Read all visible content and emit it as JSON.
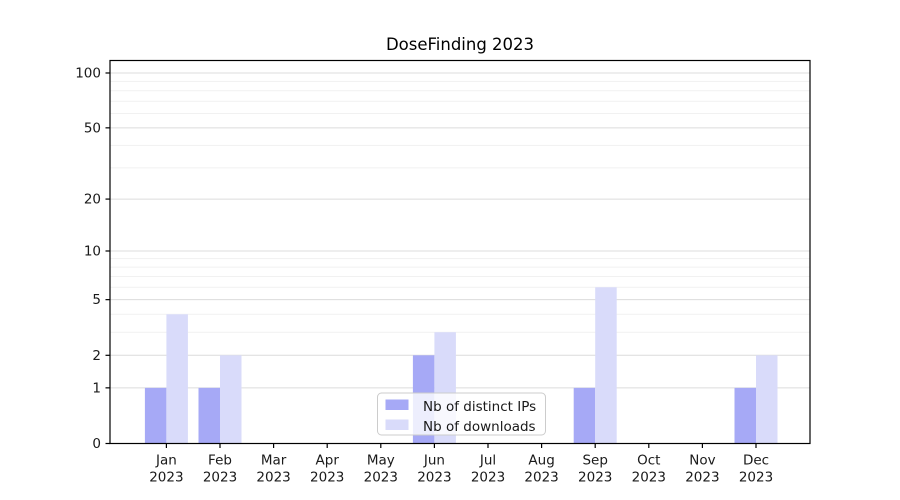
{
  "page": {
    "background": "#ffffff"
  },
  "chart_data": {
    "type": "bar",
    "title": "DoseFinding 2023",
    "categories": [
      "Jan",
      "Feb",
      "Mar",
      "Apr",
      "May",
      "Jun",
      "Jul",
      "Aug",
      "Sep",
      "Oct",
      "Nov",
      "Dec"
    ],
    "category_year": "2023",
    "series": [
      {
        "name": "Nb of distinct IPs",
        "color": "#a6a9f6",
        "values": [
          1,
          1,
          0,
          0,
          0,
          2,
          0,
          0,
          1,
          0,
          0,
          1
        ]
      },
      {
        "name": "Nb of downloads",
        "color": "#d9dbfa",
        "values": [
          4,
          2,
          0,
          0,
          0,
          3,
          0,
          0,
          6,
          0,
          0,
          2
        ]
      }
    ],
    "yscale": "log1p",
    "ylim": [
      0,
      117
    ],
    "yticks": [
      0,
      1,
      2,
      5,
      10,
      20,
      50,
      100
    ],
    "yticks_minor": [
      3,
      4,
      6,
      7,
      8,
      9,
      30,
      40,
      60,
      70,
      80,
      90
    ],
    "grid": {
      "major_color": "#dcdcdc",
      "minor_color": "#f1f1f1"
    },
    "axis_color": "#000000",
    "text_color": "#1a1a1a",
    "legend": {
      "background": "rgba(255,255,255,0.8)",
      "border_color": "#cccccc"
    }
  }
}
